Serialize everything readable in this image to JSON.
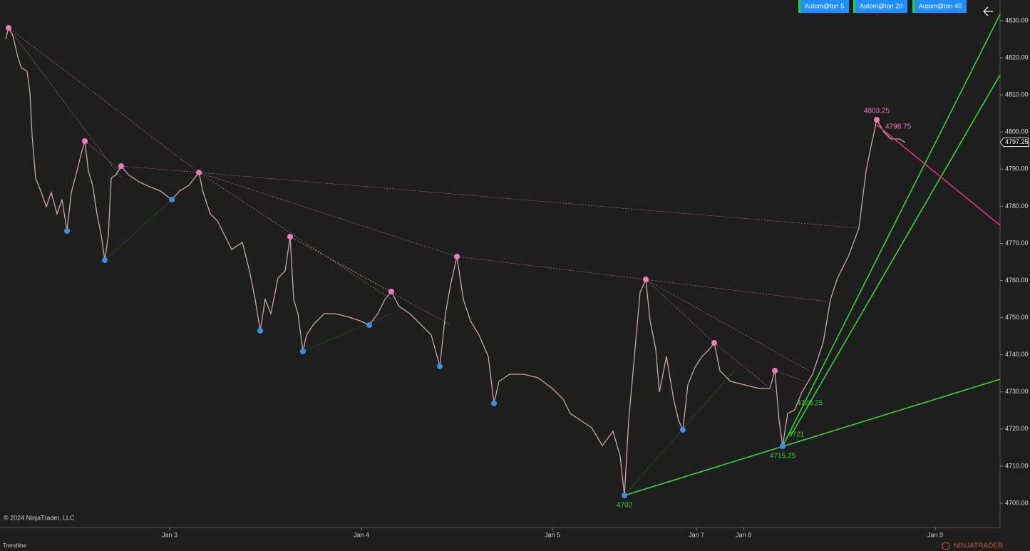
{
  "toolbar": {
    "buttons": [
      "Autom@ton  5",
      "Autom@ton  20",
      "Autom@ton  40"
    ]
  },
  "price_axis": {
    "ylim": [
      4700,
      4830
    ],
    "ticks": [
      {
        "value": 4830,
        "label": "4830.00"
      },
      {
        "value": 4820,
        "label": "4820.00"
      },
      {
        "value": 4810,
        "label": "4810.00"
      },
      {
        "value": 4800,
        "label": "4800.00"
      },
      {
        "value": 4790,
        "label": "4790.00"
      },
      {
        "value": 4780,
        "label": "4780.00"
      },
      {
        "value": 4770,
        "label": "4770.00"
      },
      {
        "value": 4760,
        "label": "4760.00"
      },
      {
        "value": 4750,
        "label": "4750.00"
      },
      {
        "value": 4740,
        "label": "4740.00"
      },
      {
        "value": 4730,
        "label": "4730.00"
      },
      {
        "value": 4720,
        "label": "4720.00"
      },
      {
        "value": 4710,
        "label": "4710.00"
      },
      {
        "value": 4700,
        "label": "4700.00"
      }
    ],
    "last_price": 4797.25
  },
  "time_axis": {
    "labels": [
      "Jan 3",
      "Jan 4",
      "Jan 5",
      "Jan 7",
      "Jan 8",
      "Jan 9"
    ]
  },
  "annotations": [
    {
      "text": "4803.25",
      "value": 4803.25
    },
    {
      "text": "4798.75",
      "value": 4798.75
    },
    {
      "text": "4729.25",
      "value": 4729.25
    },
    {
      "text": "4721",
      "value": 4721
    },
    {
      "text": "4715.25",
      "value": 4715.25
    },
    {
      "text": "4702",
      "value": 4702
    }
  ],
  "footer": {
    "copyright": "© 2024 NinjaTrader, LLC",
    "tool": "Trendline",
    "brand": "NINJATRADER"
  }
}
